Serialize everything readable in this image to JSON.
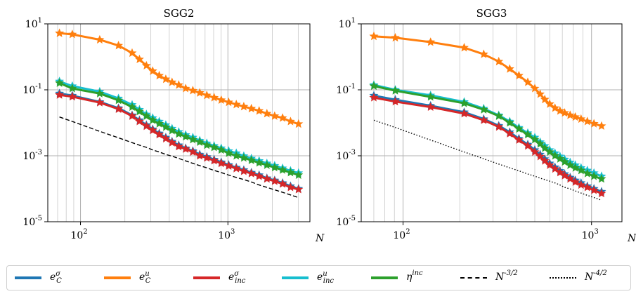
{
  "chart_data": [
    {
      "type": "line",
      "title": "SGG2",
      "xlabel": "N",
      "xscale": "log",
      "yscale": "log",
      "xlim": [
        60,
        3600
      ],
      "ylim": [
        1e-05,
        10
      ],
      "xticks": [
        100,
        1000
      ],
      "xtick_labels": [
        "10^2",
        "10^3"
      ],
      "yticks": [
        1e-05,
        0.001,
        0.1,
        10
      ],
      "ytick_labels": [
        "10^-5",
        "10^-3",
        "10^-1",
        "10^1"
      ],
      "grid": true,
      "x": [
        72,
        88,
        135,
        181,
        224,
        251,
        280,
        309,
        342,
        379,
        418,
        464,
        517,
        578,
        644,
        719,
        806,
        901,
        1012,
        1140,
        1281,
        1443,
        1628,
        1838,
        2075,
        2348,
        2659,
        3012
      ],
      "series": [
        {
          "name": "e_C^σ",
          "color": "#1f77b4",
          "values": [
            0.078,
            0.067,
            0.043,
            0.028,
            0.017,
            0.012,
            0.0086,
            0.0064,
            0.0048,
            0.0036,
            0.0027,
            0.0021,
            0.0017,
            0.0014,
            0.0011,
            0.00093,
            0.00077,
            0.00064,
            0.00053,
            0.00044,
            0.00037,
            0.00031,
            0.00026,
            0.00021,
            0.00018,
            0.00015,
            0.00012,
            0.0001
          ]
        },
        {
          "name": "e_C^u",
          "color": "#ff7f0e",
          "values": [
            5.2,
            4.8,
            3.3,
            2.2,
            1.3,
            0.84,
            0.54,
            0.37,
            0.27,
            0.21,
            0.17,
            0.14,
            0.11,
            0.095,
            0.081,
            0.068,
            0.058,
            0.049,
            0.042,
            0.036,
            0.031,
            0.027,
            0.023,
            0.019,
            0.016,
            0.014,
            0.011,
            0.0092
          ]
        },
        {
          "name": "e_inc^σ",
          "color": "#d62728",
          "values": [
            0.07,
            0.062,
            0.041,
            0.026,
            0.016,
            0.011,
            0.0079,
            0.0059,
            0.0044,
            0.0033,
            0.0025,
            0.0019,
            0.0016,
            0.0013,
            0.001,
            0.00086,
            0.00071,
            0.00059,
            0.00049,
            0.00041,
            0.00034,
            0.00029,
            0.00024,
            0.0002,
            0.00017,
            0.00014,
            0.00011,
            9.5e-05
          ]
        },
        {
          "name": "e_inc^u",
          "color": "#17becf",
          "values": [
            0.18,
            0.13,
            0.088,
            0.055,
            0.035,
            0.025,
            0.018,
            0.014,
            0.011,
            0.0086,
            0.0067,
            0.0053,
            0.0043,
            0.0036,
            0.0029,
            0.0024,
            0.002,
            0.0017,
            0.0014,
            0.0012,
            0.00098,
            0.00083,
            0.0007,
            0.00059,
            0.0005,
            0.00042,
            0.00035,
            0.0003
          ]
        },
        {
          "name": "η^inc",
          "color": "#2ca02c",
          "values": [
            0.16,
            0.11,
            0.077,
            0.048,
            0.03,
            0.022,
            0.016,
            0.012,
            0.0094,
            0.0074,
            0.0058,
            0.0046,
            0.0038,
            0.0031,
            0.0026,
            0.0021,
            0.0018,
            0.0015,
            0.0012,
            0.001,
            0.00086,
            0.00073,
            0.00061,
            0.00052,
            0.00044,
            0.00037,
            0.00031,
            0.00026
          ]
        },
        {
          "name": "N^-3/2",
          "color": "#000000",
          "dash": "dashed",
          "values": [
            0.015,
            0.011,
            0.0055,
            0.0035,
            0.0025,
            0.0021,
            0.0018,
            0.0015,
            0.0013,
            0.0011,
            0.00097,
            0.00083,
            0.0007,
            0.00059,
            0.0005,
            0.00043,
            0.00036,
            0.00031,
            0.00026,
            0.00022,
            0.00019,
            0.00016,
            0.00013,
            0.00011,
            9.3e-05,
            7.8e-05,
            6.5e-05,
            5.4e-05
          ]
        }
      ]
    },
    {
      "type": "line",
      "title": "SGG3",
      "xlabel": "N",
      "xscale": "log",
      "yscale": "log",
      "xlim": [
        60,
        1450
      ],
      "ylim": [
        1e-05,
        10
      ],
      "xticks": [
        100,
        1000
      ],
      "xtick_labels": [
        "10^2",
        "10^3"
      ],
      "yticks": [
        1e-05,
        0.001,
        0.1,
        10
      ],
      "ytick_labels": [
        "10^-5",
        "10^-3",
        "10^-1",
        "10^1"
      ],
      "grid": true,
      "x": [
        70,
        91,
        140,
        211,
        268,
        322,
        368,
        412,
        459,
        500,
        534,
        565,
        600,
        640,
        680,
        720,
        770,
        820,
        880,
        950,
        1030,
        1130
      ],
      "series": [
        {
          "name": "e_C^σ",
          "color": "#1f77b4",
          "values": [
            0.067,
            0.05,
            0.033,
            0.021,
            0.013,
            0.0082,
            0.0052,
            0.0033,
            0.0022,
            0.0015,
            0.0011,
            0.0008,
            0.00059,
            0.00045,
            0.00035,
            0.00028,
            0.00022,
            0.00018,
            0.00015,
            0.00012,
            0.0001,
            8.2e-05
          ]
        },
        {
          "name": "e_C^u",
          "color": "#ff7f0e",
          "values": [
            4.2,
            3.8,
            2.8,
            1.9,
            1.2,
            0.72,
            0.43,
            0.27,
            0.17,
            0.11,
            0.074,
            0.051,
            0.037,
            0.028,
            0.023,
            0.02,
            0.017,
            0.015,
            0.013,
            0.011,
            0.0094,
            0.008
          ]
        },
        {
          "name": "e_inc^σ",
          "color": "#d62728",
          "values": [
            0.058,
            0.044,
            0.03,
            0.019,
            0.012,
            0.0075,
            0.0047,
            0.003,
            0.002,
            0.0013,
            0.00095,
            0.0007,
            0.00052,
            0.0004,
            0.00031,
            0.00025,
            0.0002,
            0.00016,
            0.00013,
            0.00011,
            9e-05,
            7.2e-05
          ]
        },
        {
          "name": "e_inc^u",
          "color": "#17becf",
          "values": [
            0.14,
            0.1,
            0.068,
            0.043,
            0.027,
            0.017,
            0.011,
            0.0071,
            0.0049,
            0.0036,
            0.0026,
            0.002,
            0.0015,
            0.0012,
            0.00096,
            0.00078,
            0.00063,
            0.00052,
            0.00043,
            0.00036,
            0.0003,
            0.00024
          ]
        },
        {
          "name": "η^inc",
          "color": "#2ca02c",
          "values": [
            0.13,
            0.094,
            0.061,
            0.039,
            0.025,
            0.016,
            0.01,
            0.0065,
            0.0044,
            0.0031,
            0.0023,
            0.0017,
            0.0013,
            0.001,
            0.00081,
            0.00065,
            0.00052,
            0.00043,
            0.00036,
            0.00029,
            0.00024,
            0.0002
          ]
        },
        {
          "name": "N^-4/2",
          "color": "#000000",
          "dash": "dotted",
          "values": [
            0.012,
            0.0072,
            0.003,
            0.0013,
            0.00081,
            0.00056,
            0.00043,
            0.00035,
            0.00028,
            0.00024,
            0.00021,
            0.00019,
            0.00017,
            0.00015,
            0.00013,
            0.00011,
            9.9e-05,
            8.6e-05,
            7.4e-05,
            6.3e-05,
            5.4e-05,
            4.5e-05
          ]
        }
      ]
    }
  ],
  "legend": {
    "placement": "bottom",
    "items": [
      {
        "label": "e_C^σ",
        "color": "#1f77b4",
        "style": "solid"
      },
      {
        "label": "e_C^u",
        "color": "#ff7f0e",
        "style": "solid"
      },
      {
        "label": "e_inc^σ",
        "color": "#d62728",
        "style": "solid"
      },
      {
        "label": "e_inc^u",
        "color": "#17becf",
        "style": "solid"
      },
      {
        "label": "η^inc",
        "color": "#2ca02c",
        "style": "solid"
      },
      {
        "label": "N^-3/2",
        "color": "#000000",
        "style": "dashed"
      },
      {
        "label": "N^-4/2",
        "color": "#000000",
        "style": "dotted"
      }
    ]
  }
}
